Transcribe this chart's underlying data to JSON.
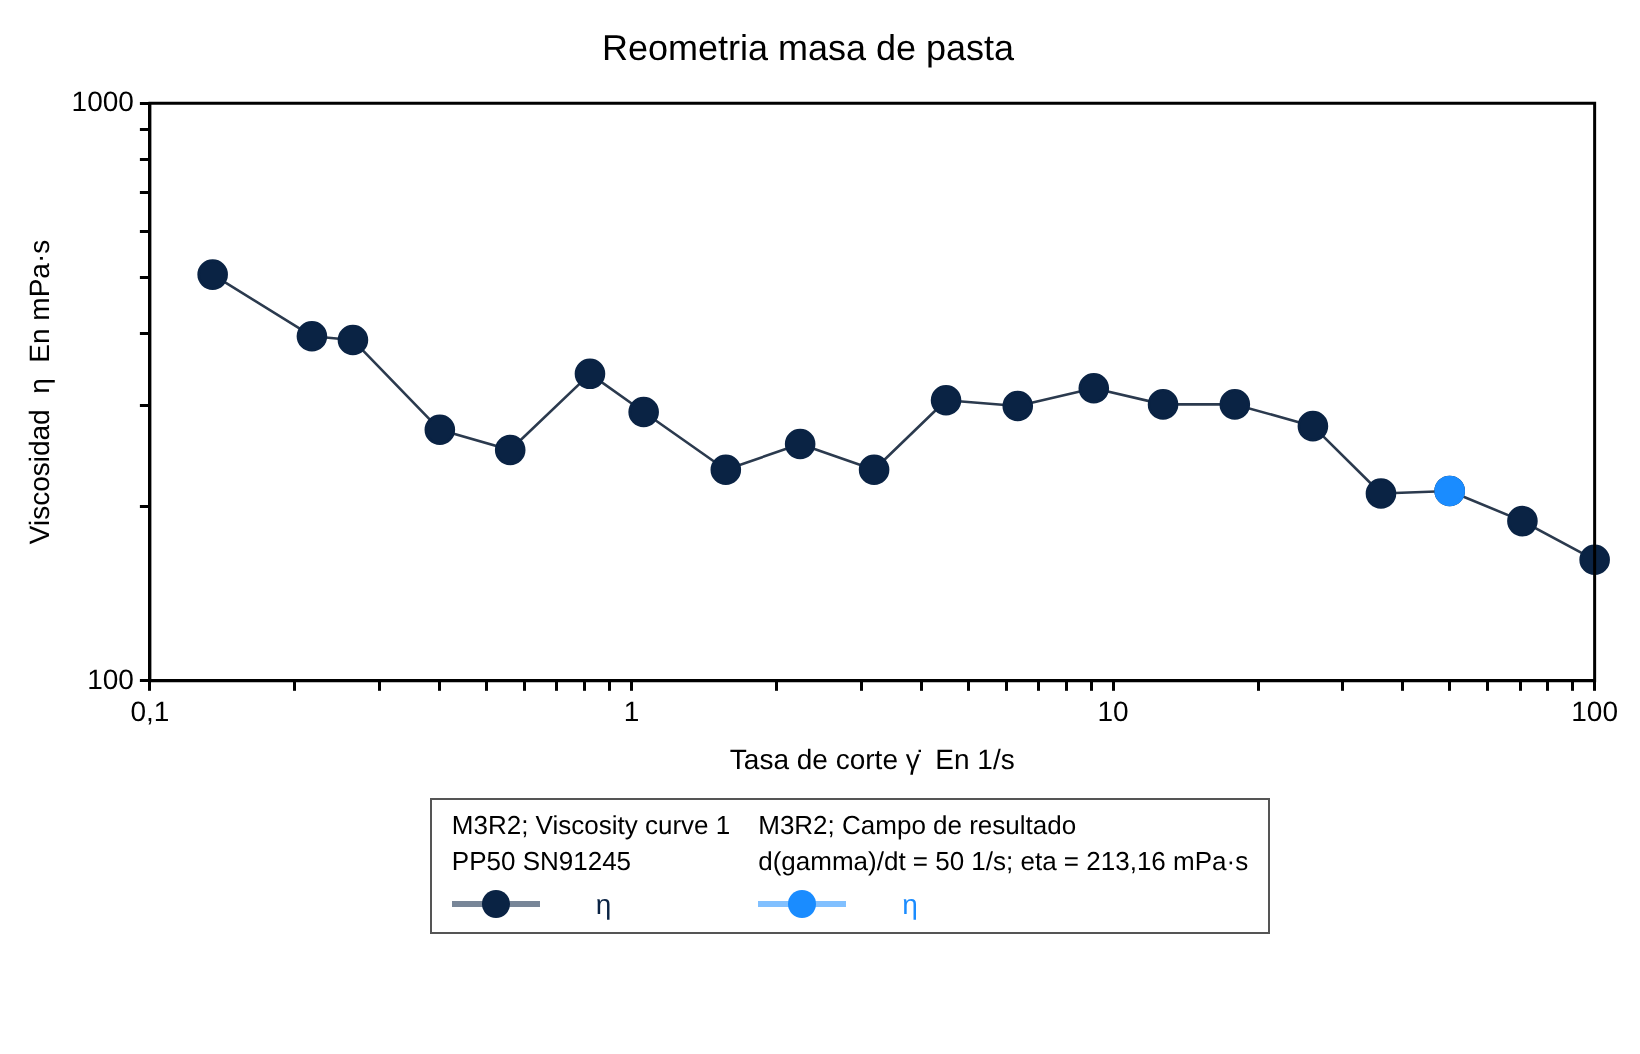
{
  "chart_data": {
    "type": "line",
    "title": "Reometria masa de pasta",
    "xlabel": "Tasa de corte γ̇  En 1/s",
    "ylabel": "Viscosidad  η  En mPa·s",
    "log": "xy",
    "grid": false,
    "legend": "bottom",
    "marker": "circle",
    "line_style": "solid",
    "xlim": [
      0.1,
      100
    ],
    "ylim": [
      100,
      1000
    ],
    "xticks": [
      {
        "value": 0.1,
        "label": "0,1"
      },
      {
        "value": 0.2,
        "label": null
      },
      {
        "value": 0.3,
        "label": null
      },
      {
        "value": 0.4,
        "label": null
      },
      {
        "value": 0.5,
        "label": null
      },
      {
        "value": 0.6,
        "label": null
      },
      {
        "value": 0.7,
        "label": null
      },
      {
        "value": 0.8,
        "label": null
      },
      {
        "value": 0.9,
        "label": null
      },
      1,
      {
        "value": 2,
        "label": null
      },
      {
        "value": 3,
        "label": null
      },
      {
        "value": 4,
        "label": null
      },
      {
        "value": 5,
        "label": null
      },
      {
        "value": 6,
        "label": null
      },
      {
        "value": 7,
        "label": null
      },
      {
        "value": 8,
        "label": null
      },
      {
        "value": 9,
        "label": null
      },
      10,
      {
        "value": 20,
        "label": null
      },
      {
        "value": 30,
        "label": null
      },
      {
        "value": 40,
        "label": null
      },
      {
        "value": 50,
        "label": null
      },
      {
        "value": 60,
        "label": null
      },
      {
        "value": 70,
        "label": null
      },
      {
        "value": 80,
        "label": null
      },
      {
        "value": 90,
        "label": null
      },
      100
    ],
    "yticks": [
      100,
      {
        "value": 200,
        "label": null
      },
      {
        "value": 300,
        "label": null
      },
      {
        "value": 400,
        "label": null
      },
      {
        "value": 500,
        "label": null
      },
      {
        "value": 600,
        "label": null
      },
      {
        "value": 700,
        "label": null
      },
      {
        "value": 800,
        "label": null
      },
      {
        "value": 900,
        "label": null
      },
      1000
    ],
    "annotations": [
      "M3R2; Viscosity curve 1\nPP50 SN91245",
      "M3R2; Campo de resultado\nd(gamma)/dt = 50 1/s; eta = 213,16 mPa·s"
    ],
    "series": [
      {
        "name": "η",
        "color": "#0a2344",
        "x": [
          0.135,
          0.217,
          0.264,
          0.4,
          0.56,
          0.82,
          1.06,
          1.57,
          2.24,
          3.19,
          4.5,
          6.34,
          9.12,
          12.7,
          17.9,
          26,
          36,
          50,
          70.8,
          100
        ],
        "values": [
          505,
          395,
          389,
          272,
          251,
          340,
          292,
          232,
          257,
          232,
          306,
          299,
          321,
          301,
          301,
          276,
          211,
          213.16,
          189,
          162
        ]
      },
      {
        "name": "η",
        "color": "#1a8cff",
        "x": [
          50
        ],
        "values": [
          213.16
        ]
      }
    ]
  }
}
